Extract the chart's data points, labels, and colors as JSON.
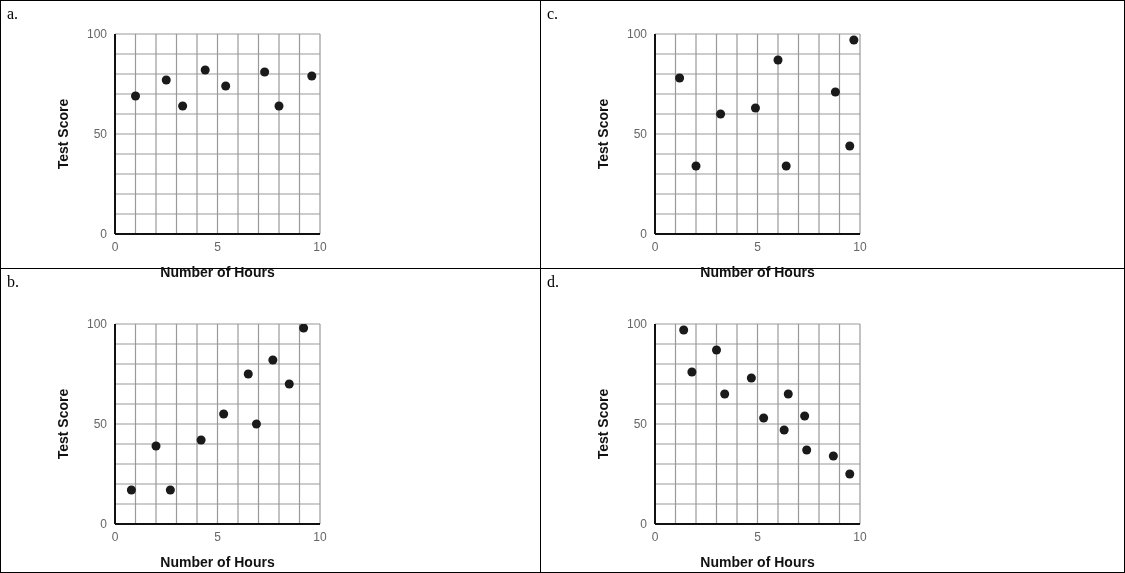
{
  "chart_data": [
    {
      "type": "scatter",
      "title": "a.",
      "xlabel": "Number of Hours",
      "ylabel": "Test Score",
      "xlim": [
        0,
        10
      ],
      "ylim": [
        0,
        100
      ],
      "xticks": [
        0,
        {
          "value": 1,
          "label": null
        },
        {
          "value": 2,
          "label": null
        },
        {
          "value": 3,
          "label": null
        },
        {
          "value": 4,
          "label": null
        },
        5,
        {
          "value": 6,
          "label": null
        },
        {
          "value": 7,
          "label": null
        },
        {
          "value": 8,
          "label": null
        },
        {
          "value": 9,
          "label": null
        },
        10
      ],
      "yticks": [
        0,
        {
          "value": 10,
          "label": null
        },
        {
          "value": 20,
          "label": null
        },
        {
          "value": 30,
          "label": null
        },
        {
          "value": 40,
          "label": null
        },
        50,
        {
          "value": 60,
          "label": null
        },
        {
          "value": 70,
          "label": null
        },
        {
          "value": 80,
          "label": null
        },
        {
          "value": 90,
          "label": null
        },
        100
      ],
      "grid": true,
      "marker": "circle",
      "series": [
        {
          "color": "#1a1a1a",
          "x": [
            1,
            2.5,
            3.3,
            4.4,
            5.4,
            7.3,
            8,
            9.6
          ],
          "values": [
            69,
            77,
            64,
            82,
            74,
            81,
            64,
            79
          ]
        }
      ]
    },
    {
      "type": "scatter",
      "title": "c.",
      "xlabel": "Number of Hours",
      "ylabel": "Test Score",
      "xlim": [
        0,
        10
      ],
      "ylim": [
        0,
        100
      ],
      "xticks": [
        0,
        {
          "value": 1,
          "label": null
        },
        {
          "value": 2,
          "label": null
        },
        {
          "value": 3,
          "label": null
        },
        {
          "value": 4,
          "label": null
        },
        5,
        {
          "value": 6,
          "label": null
        },
        {
          "value": 7,
          "label": null
        },
        {
          "value": 8,
          "label": null
        },
        {
          "value": 9,
          "label": null
        },
        10
      ],
      "yticks": [
        0,
        {
          "value": 10,
          "label": null
        },
        {
          "value": 20,
          "label": null
        },
        {
          "value": 30,
          "label": null
        },
        {
          "value": 40,
          "label": null
        },
        50,
        {
          "value": 60,
          "label": null
        },
        {
          "value": 70,
          "label": null
        },
        {
          "value": 80,
          "label": null
        },
        {
          "value": 90,
          "label": null
        },
        100
      ],
      "grid": true,
      "marker": "circle",
      "series": [
        {
          "color": "#1a1a1a",
          "x": [
            1.2,
            2,
            3.2,
            4.9,
            6,
            6.4,
            8.8,
            9.5,
            9.7
          ],
          "values": [
            78,
            34,
            60,
            63,
            87,
            34,
            71,
            44,
            97
          ]
        }
      ]
    },
    {
      "type": "scatter",
      "title": "b.",
      "xlabel": "Number of Hours",
      "ylabel": "Test Score",
      "xlim": [
        0,
        10
      ],
      "ylim": [
        0,
        100
      ],
      "xticks": [
        0,
        {
          "value": 1,
          "label": null
        },
        {
          "value": 2,
          "label": null
        },
        {
          "value": 3,
          "label": null
        },
        {
          "value": 4,
          "label": null
        },
        5,
        {
          "value": 6,
          "label": null
        },
        {
          "value": 7,
          "label": null
        },
        {
          "value": 8,
          "label": null
        },
        {
          "value": 9,
          "label": null
        },
        10
      ],
      "yticks": [
        0,
        {
          "value": 10,
          "label": null
        },
        {
          "value": 20,
          "label": null
        },
        {
          "value": 30,
          "label": null
        },
        {
          "value": 40,
          "label": null
        },
        50,
        {
          "value": 60,
          "label": null
        },
        {
          "value": 70,
          "label": null
        },
        {
          "value": 80,
          "label": null
        },
        {
          "value": 90,
          "label": null
        },
        100
      ],
      "grid": true,
      "marker": "circle",
      "series": [
        {
          "color": "#1a1a1a",
          "x": [
            0.8,
            2,
            2.7,
            4.2,
            5.3,
            6.5,
            6.9,
            7.7,
            8.5,
            9.2
          ],
          "values": [
            17,
            39,
            17,
            42,
            55,
            75,
            50,
            82,
            70,
            98
          ]
        }
      ]
    },
    {
      "type": "scatter",
      "title": "d.",
      "xlabel": "Number of Hours",
      "ylabel": "Test Score",
      "xlim": [
        0,
        10
      ],
      "ylim": [
        0,
        100
      ],
      "xticks": [
        0,
        {
          "value": 1,
          "label": null
        },
        {
          "value": 2,
          "label": null
        },
        {
          "value": 3,
          "label": null
        },
        {
          "value": 4,
          "label": null
        },
        5,
        {
          "value": 6,
          "label": null
        },
        {
          "value": 7,
          "label": null
        },
        {
          "value": 8,
          "label": null
        },
        {
          "value": 9,
          "label": null
        },
        10
      ],
      "yticks": [
        0,
        {
          "value": 10,
          "label": null
        },
        {
          "value": 20,
          "label": null
        },
        {
          "value": 30,
          "label": null
        },
        {
          "value": 40,
          "label": null
        },
        50,
        {
          "value": 60,
          "label": null
        },
        {
          "value": 70,
          "label": null
        },
        {
          "value": 80,
          "label": null
        },
        {
          "value": 90,
          "label": null
        },
        100
      ],
      "grid": true,
      "marker": "circle",
      "series": [
        {
          "color": "#1a1a1a",
          "x": [
            1.4,
            1.8,
            3,
            3.4,
            4.7,
            5.3,
            6.3,
            6.5,
            7.3,
            7.4,
            8.7,
            9.5
          ],
          "values": [
            97,
            76,
            87,
            65,
            73,
            53,
            47,
            65,
            54,
            37,
            34,
            25
          ]
        }
      ]
    }
  ]
}
